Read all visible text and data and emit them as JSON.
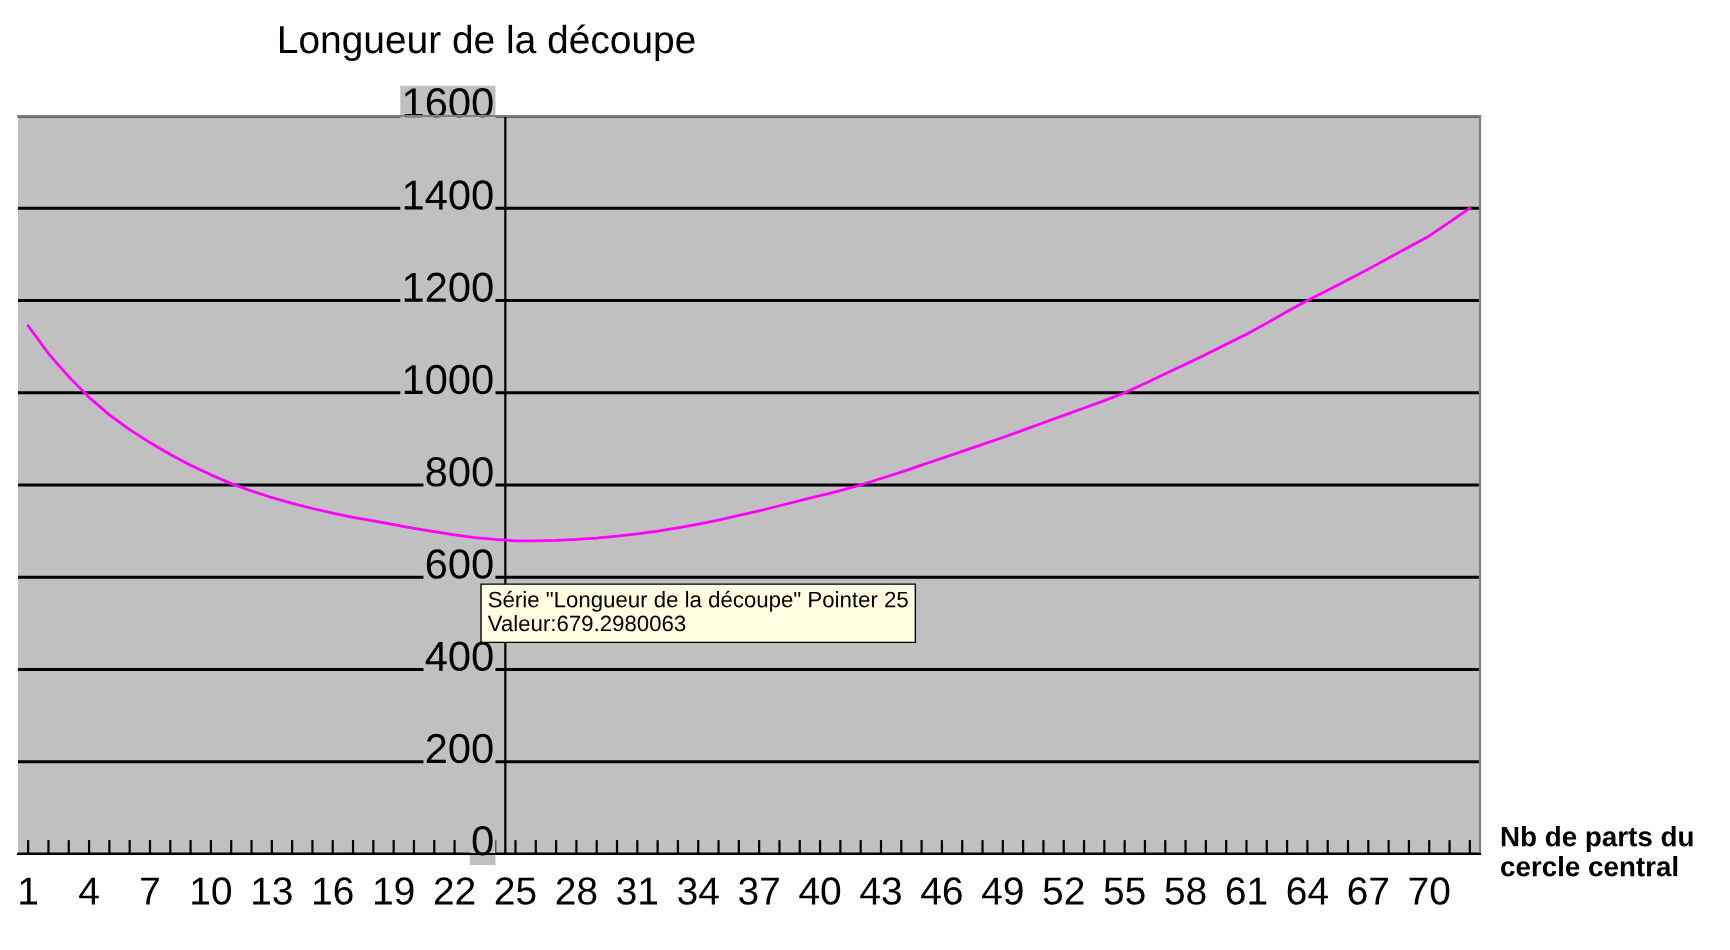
{
  "chart_data": {
    "type": "line",
    "title": "Longueur de la découpe",
    "xlabel": "Nb de parts du\ncercle central",
    "categories": [
      "1",
      null,
      null,
      "4",
      null,
      null,
      "7",
      null,
      null,
      "10",
      null,
      null,
      "13",
      null,
      null,
      "16",
      null,
      null,
      "19",
      null,
      null,
      "22",
      null,
      null,
      "25",
      null,
      null,
      "28",
      null,
      null,
      "31",
      null,
      null,
      "34",
      null,
      null,
      "37",
      null,
      null,
      "40",
      null,
      null,
      "43",
      null,
      null,
      "46",
      null,
      null,
      "49",
      null,
      null,
      "52",
      null,
      null,
      "55",
      null,
      null,
      "58",
      null,
      null,
      "61",
      null,
      null,
      "64",
      null,
      null,
      "67",
      null,
      null,
      "70",
      null,
      null
    ],
    "series": [
      {
        "color": "#ff00ff",
        "values": [
          1145,
          1085,
          1035,
          990,
          952,
          920,
          892,
          866,
          843,
          822,
          803,
          787,
          773,
          760,
          749,
          739,
          730,
          722,
          714,
          706,
          699,
          692,
          686,
          682,
          679,
          679,
          680,
          682,
          685,
          689,
          694,
          700,
          707,
          715,
          724,
          734,
          744,
          755,
          766,
          777,
          788,
          800,
          814,
          828,
          843,
          858,
          873,
          888,
          903,
          919,
          935,
          951,
          967,
          983,
          1000,
          1020,
          1041,
          1062,
          1083,
          1105,
          1127,
          1151,
          1176,
          1200,
          1222,
          1245,
          1268,
          1292,
          1316,
          1340,
          1370,
          1400
        ]
      }
    ],
    "ylim": [
      0,
      1600
    ],
    "yticks": [
      0,
      200,
      400,
      600,
      800,
      1000,
      1200,
      1400,
      1600
    ],
    "grid": "y",
    "marker": "none",
    "line_style": "solid",
    "annotations": [
      {
        "text": "Série \"Longueur de la découpe\" Pointer 25\nValeur:679.2980063",
        "x": "25",
        "y": 679
      }
    ]
  }
}
